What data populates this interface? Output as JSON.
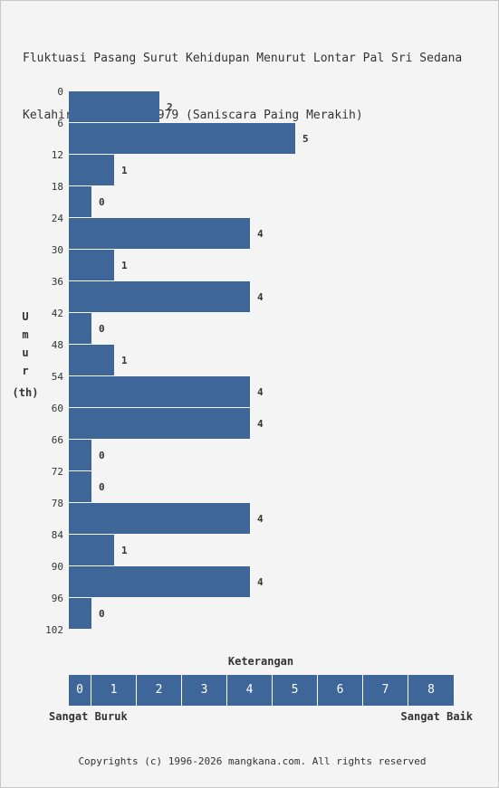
{
  "title_lines": [
    "Fluktuasi Pasang Surut Kehidupan Menurut Lontar Pal Sri Sedana",
    "Kelahiran 16 Juni 1979 (Saniscara Paing Merakih)"
  ],
  "chart_data": {
    "type": "bar",
    "orientation": "horizontal",
    "y_ticks": [
      "0",
      "6",
      "12",
      "18",
      "24",
      "30",
      "36",
      "42",
      "48",
      "54",
      "60",
      "66",
      "72",
      "78",
      "84",
      "90",
      "96",
      "102"
    ],
    "values": [
      2,
      5,
      1,
      0,
      4,
      1,
      4,
      0,
      1,
      4,
      4,
      0,
      0,
      4,
      1,
      4,
      0
    ],
    "ylabel_chars": [
      "U",
      "m",
      "u",
      "r"
    ],
    "ylabel_unit": "(th)",
    "xlim": [
      0,
      8
    ],
    "bar_color": "#3f6698"
  },
  "legend": {
    "title": "Keterangan",
    "cells": [
      "0",
      "1",
      "2",
      "3",
      "4",
      "5",
      "6",
      "7",
      "8"
    ],
    "left_label": "Sangat Buruk",
    "right_label": "Sangat Baik"
  },
  "footer": "Copyrights (c) 1996-2026 mangkana.com. All rights reserved"
}
